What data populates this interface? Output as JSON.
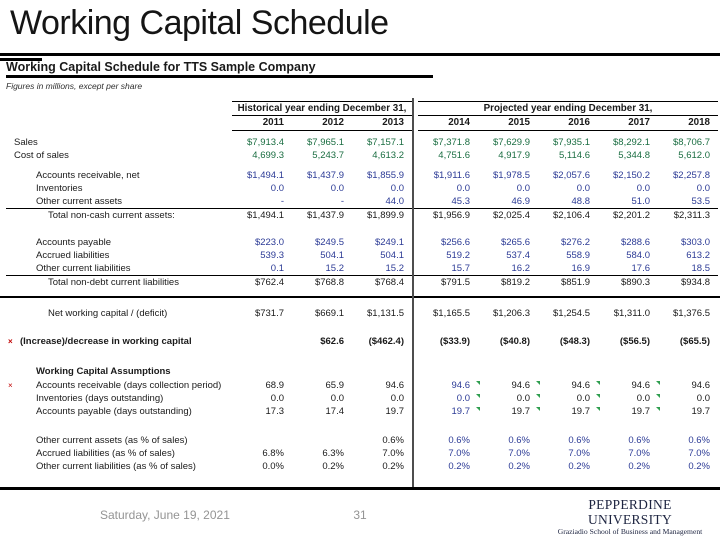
{
  "slide": {
    "title": "Working Capital Schedule"
  },
  "palette": {
    "green": "#1b6e42",
    "navy": "#2c3b96",
    "blue": "#2c3b96",
    "black": "#1a1a1a",
    "marker_red": "#c00000",
    "flag_green": "#2f9e4f",
    "footer_gray": "#949494",
    "logo_navy": "#1d2440"
  },
  "sheet": {
    "title": "Working Capital Schedule for TTS Sample Company",
    "subtitle": "Figures in millions, except per share",
    "header_groups": [
      {
        "label": "Historical year ending December 31,"
      },
      {
        "label": "Projected year ending December 31,"
      }
    ],
    "years": [
      "2011",
      "2012",
      "2013",
      "2014",
      "2015",
      "2016",
      "2017",
      "2018"
    ]
  },
  "table_rows": [
    {
      "label": "Sales",
      "indent": 0,
      "color": "green",
      "values": [
        "$7,913.4",
        "$7,965.1",
        "$7,157.1",
        "$7,371.8",
        "$7,629.9",
        "$7,935.1",
        "$8,292.1",
        "$8,706.7"
      ]
    },
    {
      "label": "Cost of sales",
      "indent": 0,
      "color": "green",
      "values": [
        "4,699.3",
        "5,243.7",
        "4,613.2",
        "4,751.6",
        "4,917.9",
        "5,114.6",
        "5,344.8",
        "5,612.0"
      ]
    },
    {
      "label": "Accounts receivable, net",
      "indent": 2,
      "color": "navy",
      "gap_before": 7,
      "values": [
        "$1,494.1",
        "$1,437.9",
        "$1,855.9",
        "$1,911.6",
        "$1,978.5",
        "$2,057.6",
        "$2,150.2",
        "$2,257.8"
      ]
    },
    {
      "label": "Inventories",
      "indent": 2,
      "color": "navy",
      "values": [
        "0.0",
        "0.0",
        "0.0",
        "0.0",
        "0.0",
        "0.0",
        "0.0",
        "0.0"
      ]
    },
    {
      "label": "Other current assets",
      "indent": 2,
      "color": "navy",
      "values": [
        "-",
        "-",
        "44.0",
        "45.3",
        "46.9",
        "48.8",
        "51.0",
        "53.5"
      ]
    },
    {
      "label": "Total non-cash current assets:",
      "indent": 3,
      "color": "black",
      "class": "total",
      "values": [
        "$1,494.1",
        "$1,437.9",
        "$1,899.9",
        "$1,956.9",
        "$2,025.4",
        "$2,106.4",
        "$2,201.2",
        "$2,311.3"
      ]
    },
    {
      "label": "Accounts payable",
      "indent": 2,
      "color": "navy",
      "gap_before": 13,
      "values": [
        "$223.0",
        "$249.5",
        "$249.1",
        "$256.6",
        "$265.6",
        "$276.2",
        "$288.6",
        "$303.0"
      ]
    },
    {
      "label": "Accrued liabilities",
      "indent": 2,
      "color": "navy",
      "values": [
        "539.3",
        "504.1",
        "504.1",
        "519.2",
        "537.4",
        "558.9",
        "584.0",
        "613.2"
      ]
    },
    {
      "label": "Other current liabilities",
      "indent": 2,
      "color": "navy",
      "values": [
        "0.1",
        "15.2",
        "15.2",
        "15.7",
        "16.2",
        "16.9",
        "17.6",
        "18.5"
      ]
    },
    {
      "label": "Total non-debt current liabilities",
      "indent": 3,
      "color": "black",
      "class": "total",
      "values": [
        "$762.4",
        "$768.8",
        "$768.4",
        "$791.5",
        "$819.2",
        "$851.9",
        "$890.3",
        "$934.8"
      ]
    },
    {
      "label": "Net working capital / (deficit)",
      "indent": 3,
      "color": "black",
      "gap_before": 3,
      "rule_before": true,
      "values": [
        "$731.7",
        "$669.1",
        "$1,131.5",
        "$1,165.5",
        "$1,206.3",
        "$1,254.5",
        "$1,311.0",
        "$1,376.5"
      ]
    },
    {
      "label": "(Increase)/decrease in working capital",
      "indent": 1,
      "color": "black",
      "class": "bold",
      "gap_before": 15,
      "marker": "×",
      "values": [
        "",
        "$62.6",
        "($462.4)",
        "($33.9)",
        "($40.8)",
        "($48.3)",
        "($56.5)",
        "($65.5)"
      ]
    },
    {
      "label": "Working Capital Assumptions",
      "indent": 2,
      "class": "section",
      "gap_before": 17,
      "values": [
        "",
        "",
        "",
        "",
        "",
        "",
        "",
        ""
      ]
    },
    {
      "label": "Accounts receivable (days collection period)",
      "indent": 2,
      "color": "black",
      "gap_before": 1,
      "marker": "×",
      "flag_cols": [
        3,
        4,
        5,
        6
      ],
      "cell_colors": {
        "3": "blue"
      },
      "values": [
        "68.9",
        "65.9",
        "94.6",
        "94.6",
        "94.6",
        "94.6",
        "94.6",
        "94.6"
      ]
    },
    {
      "label": "Inventories (days outstanding)",
      "indent": 2,
      "color": "black",
      "flag_cols": [
        3,
        4,
        5,
        6
      ],
      "cell_colors": {
        "3": "blue"
      },
      "values": [
        "0.0",
        "0.0",
        "0.0",
        "0.0",
        "0.0",
        "0.0",
        "0.0",
        "0.0"
      ]
    },
    {
      "label": "Accounts payable (days outstanding)",
      "indent": 2,
      "color": "black",
      "flag_cols": [
        3,
        4,
        5,
        6
      ],
      "cell_colors": {
        "3": "blue"
      },
      "values": [
        "17.3",
        "17.4",
        "19.7",
        "19.7",
        "19.7",
        "19.7",
        "19.7",
        "19.7"
      ]
    },
    {
      "label": "Other current assets (as % of sales)",
      "indent": 2,
      "color": "black",
      "gap_before": 16,
      "cell_colors": {
        "3": "blue",
        "4": "blue",
        "5": "blue",
        "6": "blue",
        "7": "blue"
      },
      "values": [
        "",
        "",
        "0.6%",
        "0.6%",
        "0.6%",
        "0.6%",
        "0.6%",
        "0.6%"
      ]
    },
    {
      "label": "Accrued liabilities (as % of sales)",
      "indent": 2,
      "color": "black",
      "cell_colors": {
        "3": "blue",
        "4": "blue",
        "5": "blue",
        "6": "blue",
        "7": "blue"
      },
      "values": [
        "6.8%",
        "6.3%",
        "7.0%",
        "7.0%",
        "7.0%",
        "7.0%",
        "7.0%",
        "7.0%"
      ]
    },
    {
      "label": "Other current liabilities (as % of sales)",
      "indent": 2,
      "color": "black",
      "cell_colors": {
        "3": "blue",
        "4": "blue",
        "5": "blue",
        "6": "blue",
        "7": "blue"
      },
      "values": [
        "0.0%",
        "0.2%",
        "0.2%",
        "0.2%",
        "0.2%",
        "0.2%",
        "0.2%",
        "0.2%"
      ]
    }
  ],
  "footer": {
    "date": "Saturday, June 19, 2021",
    "page": "31",
    "logo_line1": "PEPPERDINE UNIVERSITY",
    "logo_line2": "Graziadio School of Business and Management"
  }
}
